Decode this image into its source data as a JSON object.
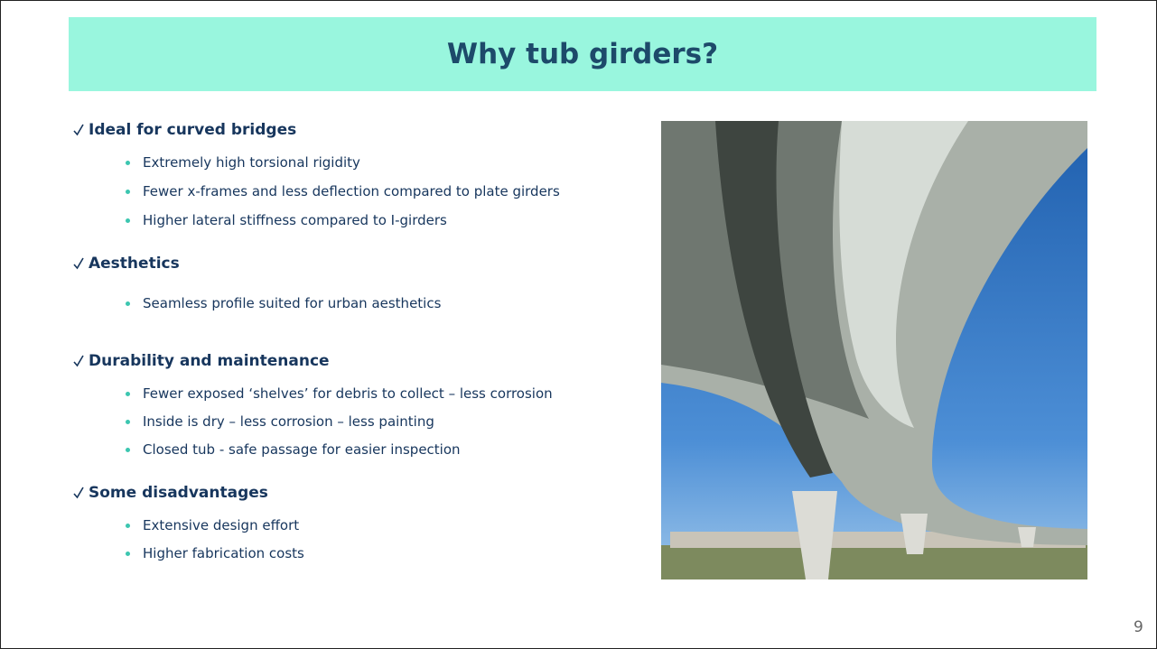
{
  "title": "Why tub girders?",
  "sections": [
    {
      "heading": "Ideal for curved bridges",
      "bullets": [
        "Extremely high torsional rigidity",
        "Fewer x-frames and less deflection compared to plate girders",
        "Higher lateral stiffness compared to I-girders"
      ]
    },
    {
      "heading": "Aesthetics",
      "bullets": [
        "Seamless profile suited for urban aesthetics"
      ]
    },
    {
      "heading": "Durability and maintenance",
      "bullets": [
        "Fewer exposed ‘shelves’ for debris to collect – less corrosion",
        "Inside is dry – less corrosion – less painting",
        "Closed tub - safe passage for easier inspection"
      ]
    },
    {
      "heading": "Some disadvantages",
      "bullets": [
        "Extensive design effort",
        "Higher fabrication costs"
      ]
    }
  ],
  "page_number": "9"
}
